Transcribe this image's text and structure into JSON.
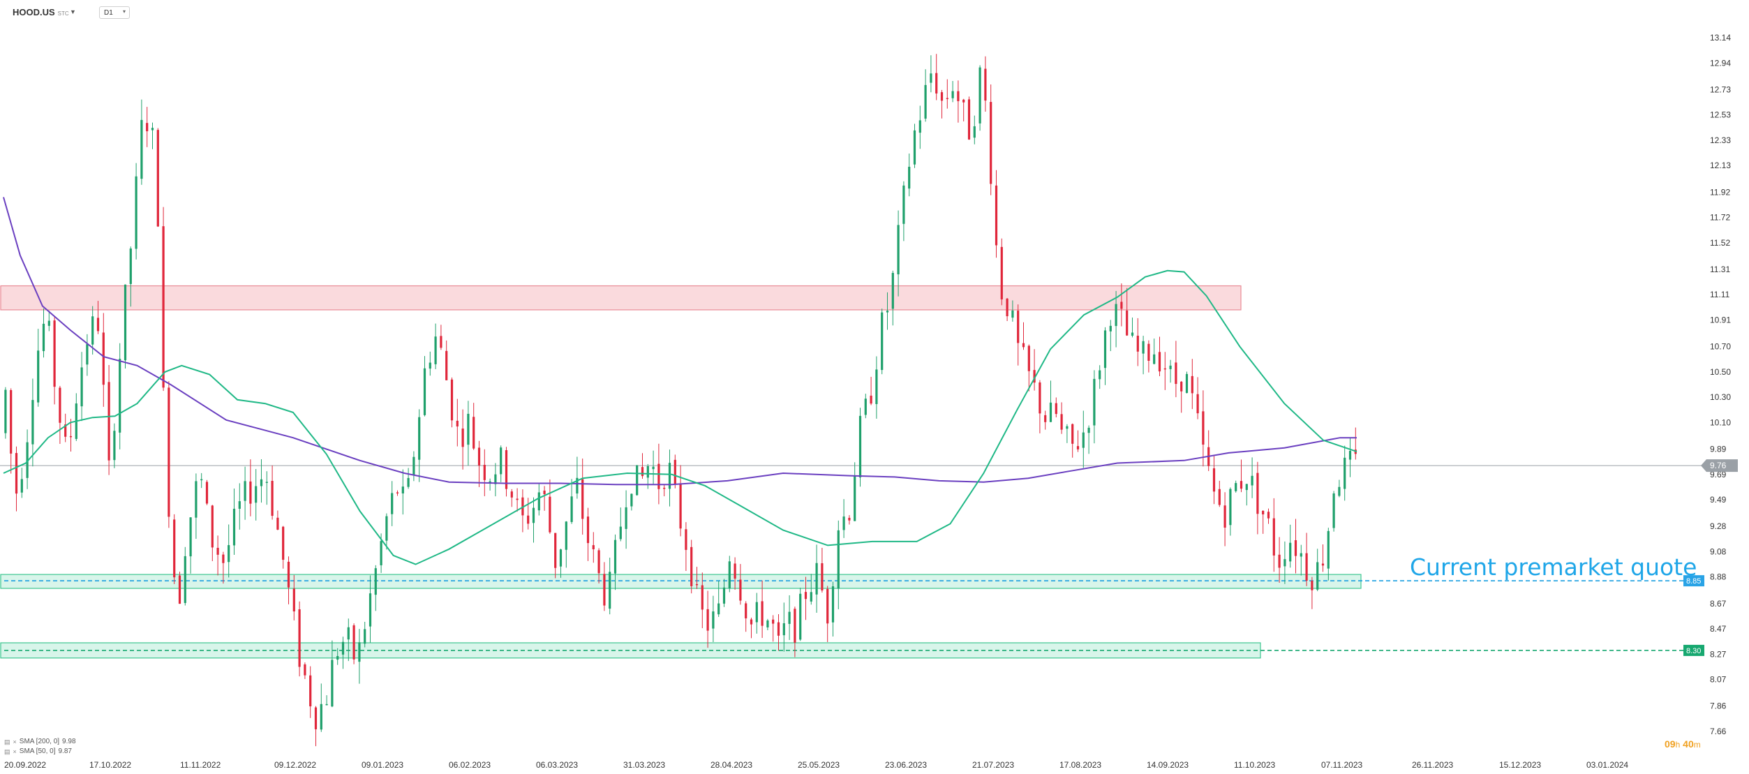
{
  "header": {
    "symbol": "HOOD.US",
    "symbol_suffix": "STC",
    "timeframe": "D1"
  },
  "legend": [
    {
      "label": "SMA [200, 0]",
      "value": "9.98"
    },
    {
      "label": "SMA [50, 0]",
      "value": "9.87"
    }
  ],
  "timer": {
    "hours": "09",
    "h": "h",
    "minutes": "40",
    "m": "m"
  },
  "annotation": "Current premarket quote",
  "colors": {
    "up": "#1fa06b",
    "down": "#e0263a",
    "sma200": "#6a3fc0",
    "sma50": "#1fb886",
    "resistance_fill": "#fadadd",
    "resistance_border": "#e88a95",
    "support_fill": "#d8f5ea",
    "support_border": "#3cc690",
    "price_tag": "#9aa0a6",
    "tag_blue": "#29a3e6",
    "tag_green": "#17a870",
    "annotation": "#1fa6e8"
  },
  "chart_data": {
    "type": "candlestick",
    "symbol": "HOOD.US",
    "timeframe": "D1",
    "y_ticks": [
      "13.14",
      "12.94",
      "12.73",
      "12.53",
      "12.33",
      "12.13",
      "11.92",
      "11.72",
      "11.52",
      "11.31",
      "11.11",
      "10.91",
      "10.70",
      "10.50",
      "10.30",
      "10.10",
      "9.89",
      "9.69",
      "9.49",
      "9.28",
      "9.08",
      "8.88",
      "8.67",
      "8.47",
      "8.27",
      "8.07",
      "7.86",
      "7.66"
    ],
    "ylim": [
      7.57,
      13.28
    ],
    "x_ticks": [
      "20.09.2022",
      "17.10.2022",
      "11.11.2022",
      "09.12.2022",
      "09.01.2023",
      "06.02.2023",
      "06.03.2023",
      "31.03.2023",
      "28.04.2023",
      "25.05.2023",
      "23.06.2023",
      "21.07.2023",
      "17.08.2023",
      "14.09.2023",
      "11.10.2023",
      "07.11.2023",
      "26.11.2023",
      "15.12.2023",
      "03.01.2024"
    ],
    "current_price": "9.76",
    "levels": [
      {
        "type": "resistance",
        "from": 10.99,
        "to": 11.18
      },
      {
        "type": "support",
        "from": 8.79,
        "to": 8.9,
        "label": "8.85"
      },
      {
        "type": "support",
        "from": 8.24,
        "to": 8.36,
        "label": "8.30"
      }
    ],
    "series": [
      {
        "name": "SMA [200, 0]",
        "value_at_end": 9.98,
        "points": [
          [
            0,
            11.88
          ],
          [
            15,
            11.42
          ],
          [
            35,
            11.02
          ],
          [
            60,
            10.83
          ],
          [
            90,
            10.62
          ],
          [
            120,
            10.55
          ],
          [
            150,
            10.4
          ],
          [
            200,
            10.12
          ],
          [
            260,
            9.98
          ],
          [
            320,
            9.8
          ],
          [
            360,
            9.7
          ],
          [
            400,
            9.63
          ],
          [
            450,
            9.62
          ],
          [
            500,
            9.62
          ],
          [
            550,
            9.61
          ],
          [
            600,
            9.61
          ],
          [
            650,
            9.64
          ],
          [
            700,
            9.7
          ],
          [
            760,
            9.68
          ],
          [
            800,
            9.67
          ],
          [
            840,
            9.64
          ],
          [
            880,
            9.63
          ],
          [
            920,
            9.66
          ],
          [
            960,
            9.72
          ],
          [
            1000,
            9.78
          ],
          [
            1060,
            9.8
          ],
          [
            1100,
            9.86
          ],
          [
            1150,
            9.9
          ],
          [
            1200,
            9.98
          ],
          [
            1215,
            9.98
          ]
        ]
      },
      {
        "name": "SMA [50, 0]",
        "value_at_end": 9.87,
        "points": [
          [
            0,
            9.7
          ],
          [
            20,
            9.78
          ],
          [
            40,
            9.98
          ],
          [
            60,
            10.1
          ],
          [
            80,
            10.14
          ],
          [
            100,
            10.15
          ],
          [
            120,
            10.25
          ],
          [
            145,
            10.5
          ],
          [
            160,
            10.55
          ],
          [
            185,
            10.48
          ],
          [
            210,
            10.28
          ],
          [
            235,
            10.25
          ],
          [
            260,
            10.18
          ],
          [
            290,
            9.85
          ],
          [
            320,
            9.4
          ],
          [
            350,
            9.05
          ],
          [
            370,
            8.98
          ],
          [
            400,
            9.1
          ],
          [
            440,
            9.3
          ],
          [
            480,
            9.5
          ],
          [
            520,
            9.66
          ],
          [
            560,
            9.7
          ],
          [
            600,
            9.69
          ],
          [
            630,
            9.6
          ],
          [
            660,
            9.45
          ],
          [
            700,
            9.25
          ],
          [
            740,
            9.13
          ],
          [
            780,
            9.16
          ],
          [
            820,
            9.16
          ],
          [
            850,
            9.3
          ],
          [
            880,
            9.7
          ],
          [
            910,
            10.2
          ],
          [
            940,
            10.68
          ],
          [
            970,
            10.95
          ],
          [
            1000,
            11.09
          ],
          [
            1025,
            11.25
          ],
          [
            1045,
            11.3
          ],
          [
            1060,
            11.29
          ],
          [
            1080,
            11.1
          ],
          [
            1110,
            10.7
          ],
          [
            1150,
            10.25
          ],
          [
            1185,
            9.96
          ],
          [
            1215,
            9.87
          ]
        ]
      }
    ]
  }
}
